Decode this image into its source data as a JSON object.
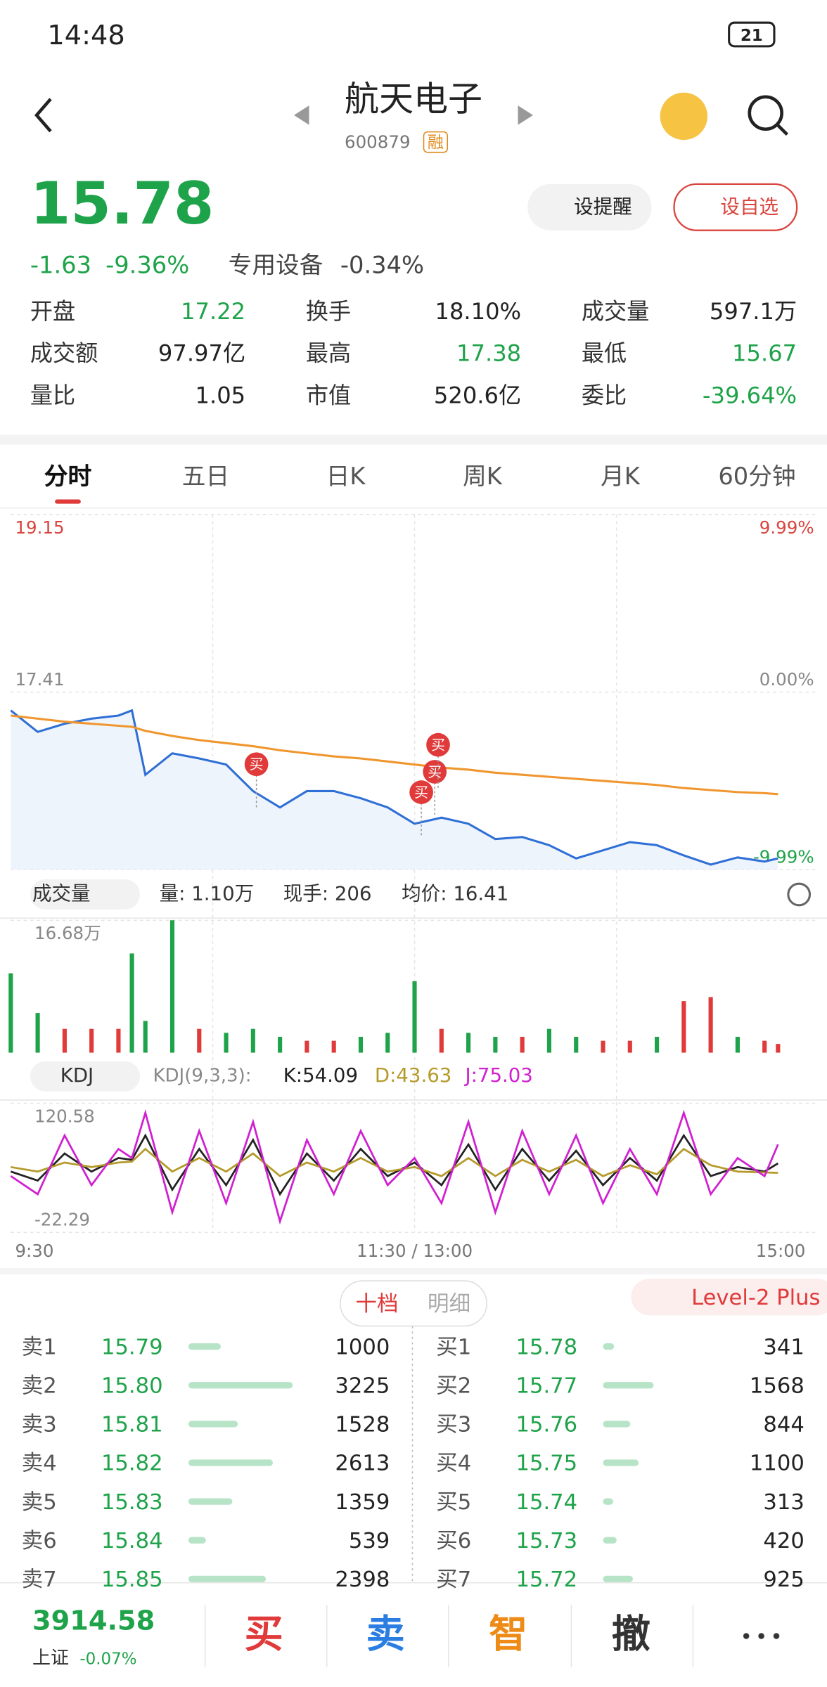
{
  "status_bar": {
    "time": "14:48",
    "battery": "21"
  },
  "header": {
    "title": "航天电子",
    "code": "600879",
    "tag": "融"
  },
  "quote": {
    "price": "15.78",
    "change": "-1.63",
    "change_pct": "-9.36%",
    "sector": "专用设备",
    "sector_change": "-0.34%",
    "buttons": [
      "设提醒",
      "设自选"
    ]
  },
  "stats": [
    {
      "label": "开盘",
      "value": "17.22",
      "color": "#1fa34a"
    },
    {
      "label": "换手",
      "value": "18.10%"
    },
    {
      "label": "成交量",
      "value": "597.1万"
    },
    {
      "label": "成交额",
      "value": "97.97亿"
    },
    {
      "label": "最高",
      "value": "17.38",
      "color": "#1fa34a"
    },
    {
      "label": "最低",
      "value": "15.67",
      "color": "#1fa34a"
    },
    {
      "label": "量比",
      "value": "1.05"
    },
    {
      "label": "市值",
      "value": "520.6亿"
    },
    {
      "label": "委比",
      "value": "-39.64%",
      "color": "#1fa34a"
    }
  ],
  "tabs": [
    "分时",
    "五日",
    "日K",
    "周K",
    "月K",
    "60分钟"
  ],
  "volume_header": {
    "selector": "成交量",
    "items": [
      "量: 1.10万",
      "现手: 206",
      "均价: 16.41"
    ]
  },
  "kdj_header": {
    "selector": "KDJ",
    "params": "KDJ(9,3,3):",
    "items": [
      "K:54.09",
      "D:43.63",
      "J:75.03"
    ]
  },
  "chart_data": [
    {
      "type": "line",
      "x": [
        0,
        8,
        16,
        24,
        32,
        36,
        40,
        48,
        56,
        64,
        72,
        80,
        88,
        96,
        104,
        112,
        120,
        128,
        136,
        144,
        152,
        160,
        168,
        176,
        184,
        192,
        200,
        208,
        216,
        224,
        228
      ],
      "xlim": [
        0,
        240
      ],
      "x_grid": [
        60,
        120,
        180
      ],
      "ylim": [
        15.67,
        19.15
      ],
      "yticks": [
        19.15,
        17.41,
        15.67
      ],
      "y2lim": [
        -9.99,
        9.99
      ],
      "y2ticks": [
        {
          "value": 9.99,
          "label": "9.99%"
        },
        {
          "value": 0,
          "label": "0.00%"
        },
        {
          "value": -9.99,
          "label": "-9.99%"
        }
      ],
      "series": [
        {
          "color": "#2f6fd6",
          "values": [
            17.23,
            17.02,
            17.1,
            17.15,
            17.18,
            17.23,
            16.6,
            16.81,
            16.76,
            16.7,
            16.44,
            16.28,
            16.44,
            16.44,
            16.37,
            16.28,
            16.12,
            16.18,
            16.12,
            15.97,
            15.99,
            15.91,
            15.78,
            15.86,
            15.94,
            15.91,
            15.81,
            15.72,
            15.79,
            15.75,
            15.78
          ]
        },
        {
          "color": "#f0962e",
          "values": [
            17.18,
            17.15,
            17.12,
            17.1,
            17.08,
            17.07,
            17.03,
            16.98,
            16.94,
            16.91,
            16.88,
            16.84,
            16.81,
            16.78,
            16.76,
            16.73,
            16.7,
            16.67,
            16.65,
            16.62,
            16.6,
            16.58,
            16.56,
            16.54,
            16.52,
            16.5,
            16.47,
            16.45,
            16.43,
            16.42,
            16.41
          ]
        }
      ],
      "annotations": [
        {
          "x": 73,
          "label": "买"
        },
        {
          "x": 122,
          "label": "买"
        },
        {
          "x": 126,
          "label": "买"
        },
        {
          "x": 127,
          "label": "买"
        }
      ]
    },
    {
      "type": "bar",
      "x": [
        0,
        8,
        16,
        24,
        32,
        36,
        40,
        48,
        56,
        64,
        72,
        80,
        88,
        96,
        104,
        112,
        120,
        128,
        136,
        144,
        152,
        160,
        168,
        176,
        184,
        192,
        200,
        208,
        216,
        224,
        228
      ],
      "xlim": [
        0,
        240
      ],
      "ylim": [
        0,
        16.68
      ],
      "yticks": [
        {
          "value": 16.68,
          "label": "16.68万"
        }
      ],
      "values": [
        10,
        5,
        3,
        3,
        3,
        12.5,
        4,
        16.68,
        3,
        2.5,
        3,
        2,
        1.5,
        1.5,
        2,
        2.5,
        9,
        3,
        2.5,
        2,
        2,
        3,
        2,
        1.5,
        1.5,
        2,
        6.5,
        7,
        2,
        1.5,
        1.1
      ],
      "colors": [
        "#1fa34a",
        "#1fa34a",
        "#e03a3a",
        "#e03a3a",
        "#e03a3a",
        "#1fa34a",
        "#1fa34a",
        "#1fa34a",
        "#e03a3a",
        "#1fa34a",
        "#1fa34a",
        "#1fa34a",
        "#e03a3a",
        "#e03a3a",
        "#1fa34a",
        "#1fa34a",
        "#1fa34a",
        "#e03a3a",
        "#1fa34a",
        "#1fa34a",
        "#e03a3a",
        "#1fa34a",
        "#1fa34a",
        "#e03a3a",
        "#e03a3a",
        "#1fa34a",
        "#e03a3a",
        "#e03a3a",
        "#1fa34a",
        "#e03a3a",
        "#e03a3a"
      ]
    },
    {
      "type": "line",
      "x": [
        0,
        8,
        16,
        24,
        32,
        36,
        40,
        48,
        56,
        64,
        72,
        80,
        88,
        96,
        104,
        112,
        120,
        128,
        136,
        144,
        152,
        160,
        168,
        176,
        184,
        192,
        200,
        208,
        216,
        224,
        228
      ],
      "xlim": [
        0,
        240
      ],
      "ylim": [
        -22.29,
        120.58
      ],
      "yticks": [
        120.58,
        -22.29
      ],
      "xticks": [
        {
          "value": 0,
          "label": "9:30"
        },
        {
          "value": 120,
          "label": "11:30 / 13:00"
        },
        {
          "value": 240,
          "label": "15:00"
        }
      ],
      "series": [
        {
          "color": "#222222",
          "values": [
            45,
            35,
            65,
            45,
            60,
            58,
            85,
            25,
            70,
            30,
            80,
            20,
            65,
            35,
            70,
            40,
            55,
            30,
            75,
            25,
            70,
            35,
            68,
            30,
            60,
            35,
            85,
            40,
            50,
            45,
            54.09
          ]
        },
        {
          "color": "#b59a2a",
          "values": [
            50,
            45,
            55,
            50,
            55,
            56,
            70,
            45,
            60,
            45,
            65,
            40,
            55,
            45,
            60,
            45,
            50,
            40,
            60,
            40,
            58,
            45,
            58,
            40,
            52,
            42,
            70,
            52,
            45,
            44,
            43.63
          ]
        },
        {
          "color": "#d020d0",
          "values": [
            40,
            20,
            85,
            30,
            70,
            60,
            110,
            0,
            90,
            10,
            100,
            -10,
            80,
            20,
            90,
            30,
            60,
            10,
            100,
            0,
            90,
            20,
            85,
            10,
            70,
            20,
            110,
            20,
            60,
            40,
            75.03
          ]
        }
      ]
    }
  ],
  "order_book": {
    "tabs": [
      "十档",
      "明细"
    ],
    "level": "Level-2 Plus",
    "sell": [
      {
        "label": "卖1",
        "price": "15.79",
        "qty": 1000
      },
      {
        "label": "卖2",
        "price": "15.80",
        "qty": 3225
      },
      {
        "label": "卖3",
        "price": "15.81",
        "qty": 1528
      },
      {
        "label": "卖4",
        "price": "15.82",
        "qty": 2613
      },
      {
        "label": "卖5",
        "price": "15.83",
        "qty": 1359
      },
      {
        "label": "卖6",
        "price": "15.84",
        "qty": 539
      },
      {
        "label": "卖7",
        "price": "15.85",
        "qty": 2398
      }
    ],
    "buy": [
      {
        "label": "买1",
        "price": "15.78",
        "qty": 341
      },
      {
        "label": "买2",
        "price": "15.77",
        "qty": 1568
      },
      {
        "label": "买3",
        "price": "15.76",
        "qty": 844
      },
      {
        "label": "买4",
        "price": "15.75",
        "qty": 1100
      },
      {
        "label": "买5",
        "price": "15.74",
        "qty": 313
      },
      {
        "label": "买6",
        "price": "15.73",
        "qty": 420
      },
      {
        "label": "买7",
        "price": "15.72",
        "qty": 925
      }
    ]
  },
  "footer": {
    "index_value": "3914.58",
    "index_name": "上证",
    "index_change": "-0.07%",
    "buttons": [
      "买",
      "卖",
      "智",
      "撤"
    ]
  }
}
